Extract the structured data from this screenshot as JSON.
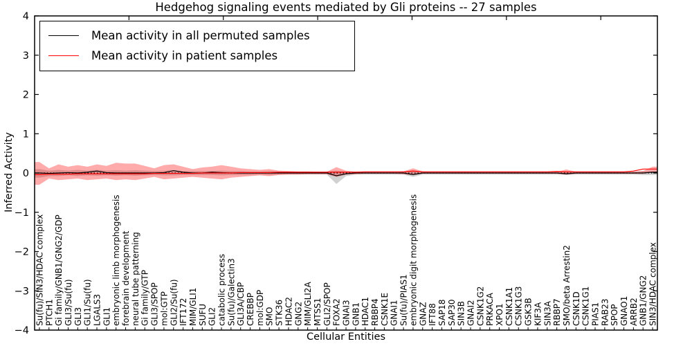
{
  "figure": {
    "title": "Hedgehog signaling events mediated by Gli proteins -- 27 samples",
    "xlabel": "Cellular Entities",
    "ylabel": "Inferred Activity"
  },
  "legend": {
    "items": [
      {
        "label": "Mean activity in all permuted samples",
        "color": "#000000"
      },
      {
        "label": "Mean activity in patient samples",
        "color": "#ff0000"
      }
    ]
  },
  "chart_data": {
    "type": "line",
    "title": "Hedgehog signaling events mediated by Gli proteins -- 27 samples",
    "xlabel": "Cellular Entities",
    "ylabel": "Inferred Activity",
    "ylim": [
      -4,
      4
    ],
    "ytick_labels": [
      "−4",
      "−3",
      "−2",
      "−1",
      "0",
      "1",
      "2",
      "3",
      "4"
    ],
    "grid": false,
    "legend_position": "upper left",
    "zero_line": {
      "style": "dotted",
      "color": "#000000",
      "y": 0
    },
    "categories": [
      "Su(fu)/SIN3/HDAC complex",
      "PTCH1",
      "Gi family/GNB1/GNG2/GDP",
      "GLI3/Su(fu)",
      "GLI3",
      "GLI1/Su(fu)",
      "LGALS3",
      "GLI1",
      "embryonic limb morphogenesis",
      "forebrain development",
      "neural tube patterning",
      "Gi family/GTP",
      "GLI3/SPOP",
      "mol:GTP",
      "GLI2/Su(fu)",
      "IFT172",
      "MIM/GLI1",
      "SUFU",
      "GLI2",
      "catabolic process",
      "Su(fu)/Galectin3",
      "GLI3A/CBP",
      "CREBBP",
      "mol:GDP",
      "SMO",
      "STK36",
      "HDAC2",
      "GNG2",
      "MIM/GLI2A",
      "MTSS1",
      "GLI2/SPOP",
      "FOXA2",
      "GNAI3",
      "GNB1",
      "HDAC1",
      "RBBP4",
      "CSNK1E",
      "GNAI1",
      "Su(fu)/PIAS1",
      "embryonic digit morphogenesis",
      "GNAZ",
      "IFT88",
      "SAP18",
      "SAP30",
      "SIN3B",
      "GNAI2",
      "CSNK1G2",
      "PRKACA",
      "XPO1",
      "CSNK1A1",
      "CSNK1G3",
      "GSK3B",
      "KIF3A",
      "SIN3A",
      "RBBP7",
      "SMO/beta Arrestin2",
      "CSNK1D",
      "CSNK1G1",
      "PIAS1",
      "RAB23",
      "SPOP",
      "GNAO1",
      "ARRB2",
      "GNB1/GNG2",
      "SIN3/HDAC complex"
    ],
    "series": [
      {
        "name": "Mean activity in all permuted samples",
        "color": "#000000",
        "values": [
          0,
          -0.01,
          0,
          0.01,
          0,
          0.02,
          0.05,
          0.01,
          0,
          0,
          0,
          0,
          0,
          0.01,
          0.06,
          0.02,
          0,
          0,
          0.02,
          0.01,
          0,
          0,
          0,
          0,
          0,
          0,
          0,
          0,
          0,
          0,
          0,
          -0.07,
          -0.02,
          0,
          0,
          0,
          0,
          0,
          0,
          -0.04,
          0,
          0,
          0,
          0,
          0,
          0,
          0,
          0,
          0,
          0,
          0,
          0,
          0,
          0,
          0,
          -0.02,
          0,
          0,
          0,
          0,
          0,
          0,
          0,
          0,
          0.02
        ]
      },
      {
        "name": "Mean activity in patient samples",
        "color": "#ff0000",
        "values": [
          -0.04,
          -0.03,
          -0.03,
          -0.03,
          -0.02,
          -0.02,
          -0.02,
          -0.02,
          -0.02,
          -0.02,
          -0.02,
          -0.02,
          -0.01,
          -0.01,
          -0.01,
          -0.01,
          -0.01,
          0,
          0,
          0,
          0,
          0.01,
          0.01,
          0.01,
          0.01,
          0.02,
          0.02,
          0.02,
          0.02,
          0.02,
          0.02,
          0.02,
          0.02,
          0.02,
          0.03,
          0.03,
          0.03,
          0.03,
          0.03,
          0.05,
          0.03,
          0.03,
          0.03,
          0.03,
          0.03,
          0.03,
          0.03,
          0.03,
          0.03,
          0.03,
          0.03,
          0.03,
          0.03,
          0.03,
          0.04,
          0.03,
          0.03,
          0.03,
          0.03,
          0.03,
          0.03,
          0.03,
          0.05,
          0.1,
          0.1
        ]
      }
    ],
    "bands": [
      {
        "name": "permuted-activity-range",
        "color": "#999999",
        "opacity": 0.45,
        "upper": [
          0.1,
          0.06,
          0.08,
          0.06,
          0.08,
          0.06,
          0.08,
          0.06,
          0.07,
          0.06,
          0.07,
          0.06,
          0.05,
          0.06,
          0.07,
          0.05,
          0.05,
          0.05,
          0.05,
          0.06,
          0.05,
          0.05,
          0.04,
          0.04,
          0.05,
          0.04,
          0.04,
          0.04,
          0.04,
          0.04,
          0.04,
          0.06,
          0.04,
          0.04,
          0.04,
          0.04,
          0.04,
          0.04,
          0.04,
          0.04,
          0.04,
          0.04,
          0.04,
          0.04,
          0.04,
          0.04,
          0.04,
          0.04,
          0.04,
          0.04,
          0.04,
          0.04,
          0.04,
          0.04,
          0.04,
          0.04,
          0.04,
          0.04,
          0.04,
          0.04,
          0.04,
          0.04,
          0.04,
          0.05,
          0.05
        ],
        "lower": [
          -0.12,
          -0.08,
          -0.08,
          -0.06,
          -0.08,
          -0.06,
          -0.07,
          -0.06,
          -0.07,
          -0.06,
          -0.07,
          -0.06,
          -0.05,
          -0.06,
          -0.06,
          -0.05,
          -0.05,
          -0.05,
          -0.05,
          -0.06,
          -0.05,
          -0.05,
          -0.05,
          -0.04,
          -0.05,
          -0.04,
          -0.04,
          -0.04,
          -0.04,
          -0.04,
          -0.04,
          -0.28,
          -0.08,
          -0.04,
          -0.04,
          -0.04,
          -0.04,
          -0.04,
          -0.04,
          -0.1,
          -0.04,
          -0.04,
          -0.04,
          -0.04,
          -0.04,
          -0.04,
          -0.04,
          -0.04,
          -0.04,
          -0.04,
          -0.04,
          -0.04,
          -0.04,
          -0.04,
          -0.04,
          -0.05,
          -0.04,
          -0.04,
          -0.04,
          -0.04,
          -0.04,
          -0.04,
          -0.04,
          -0.05,
          -0.05
        ]
      },
      {
        "name": "patient-activity-range",
        "color": "#ff0000",
        "opacity": 0.33,
        "upper": [
          0.28,
          0.12,
          0.22,
          0.16,
          0.2,
          0.16,
          0.22,
          0.18,
          0.26,
          0.24,
          0.24,
          0.18,
          0.12,
          0.2,
          0.22,
          0.16,
          0.1,
          0.14,
          0.16,
          0.2,
          0.16,
          0.12,
          0.1,
          0.08,
          0.1,
          0.06,
          0.05,
          0.04,
          0.04,
          0.03,
          0.03,
          0.15,
          0.06,
          0.03,
          0.03,
          0.03,
          0.03,
          0.03,
          0.04,
          0.12,
          0.04,
          0.03,
          0.03,
          0.03,
          0.03,
          0.03,
          0.03,
          0.03,
          0.03,
          0.03,
          0.03,
          0.03,
          0.03,
          0.03,
          0.03,
          0.09,
          0.03,
          0.03,
          0.03,
          0.03,
          0.03,
          0.03,
          0.03,
          0.05,
          0.16
        ],
        "lower": [
          -0.3,
          -0.14,
          -0.18,
          -0.16,
          -0.14,
          -0.18,
          -0.16,
          -0.14,
          -0.18,
          -0.16,
          -0.18,
          -0.14,
          -0.1,
          -0.16,
          -0.14,
          -0.12,
          -0.1,
          -0.12,
          -0.14,
          -0.16,
          -0.12,
          -0.1,
          -0.08,
          -0.06,
          -0.08,
          -0.05,
          -0.04,
          -0.04,
          -0.03,
          -0.03,
          -0.03,
          -0.1,
          -0.04,
          -0.03,
          -0.02,
          -0.02,
          -0.02,
          -0.02,
          -0.03,
          -0.05,
          -0.02,
          -0.02,
          -0.02,
          -0.02,
          -0.02,
          -0.02,
          -0.02,
          -0.02,
          -0.02,
          -0.02,
          -0.02,
          -0.02,
          -0.02,
          -0.02,
          -0.02,
          -0.04,
          -0.02,
          -0.02,
          -0.02,
          -0.02,
          -0.02,
          -0.02,
          -0.02,
          -0.02,
          0.02
        ]
      }
    ]
  }
}
